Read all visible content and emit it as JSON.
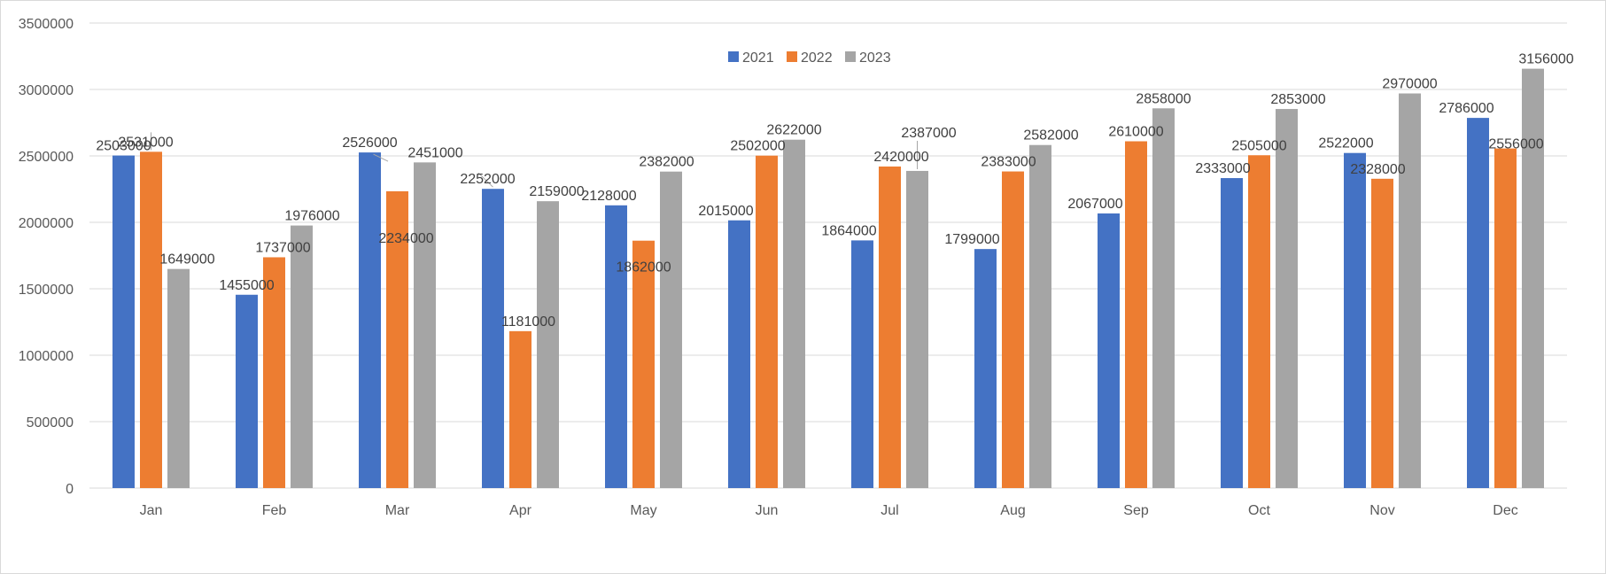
{
  "chart_data": {
    "type": "bar",
    "title": "",
    "xlabel": "",
    "ylabel": "",
    "categories": [
      "Jan",
      "Feb",
      "Mar",
      "Apr",
      "May",
      "Jun",
      "Jul",
      "Aug",
      "Sep",
      "Oct",
      "Nov",
      "Dec"
    ],
    "series": [
      {
        "name": "2021",
        "color": "#4472C4",
        "values": [
          2503000,
          1455000,
          2526000,
          2252000,
          2128000,
          2015000,
          1864000,
          1799000,
          2067000,
          2333000,
          2522000,
          2786000
        ]
      },
      {
        "name": "2022",
        "color": "#ED7D31",
        "values": [
          2531000,
          1737000,
          2234000,
          1181000,
          1862000,
          2502000,
          2420000,
          2383000,
          2610000,
          2505000,
          2328000,
          2556000
        ]
      },
      {
        "name": "2023",
        "color": "#A5A5A5",
        "values": [
          1649000,
          1976000,
          2451000,
          2159000,
          2382000,
          2622000,
          2387000,
          2582000,
          2858000,
          2853000,
          2970000,
          3156000
        ]
      }
    ],
    "ylim": [
      0,
      3500000
    ],
    "yticks": [
      "0",
      "500000",
      "1000000",
      "1500000",
      "2000000",
      "2500000",
      "3000000",
      "3500000"
    ],
    "grid": true,
    "legend_position": "top-center"
  }
}
